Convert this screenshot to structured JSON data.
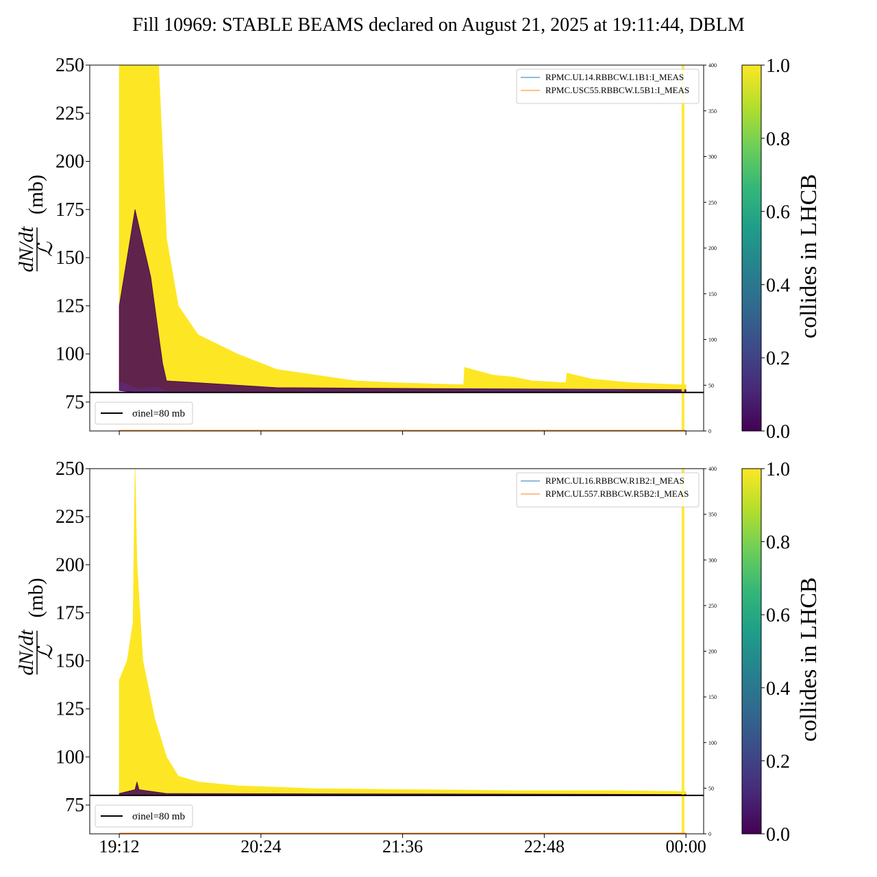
{
  "figure": {
    "title": "Fill 10969: STABLE BEAMS declared on August 21, 2025 at 19:11:44, DBLM"
  },
  "colors": {
    "yellow": "#fde725",
    "purple": "#440154",
    "sigma_line": "#000000",
    "blue_line": "#1f77b4",
    "orange_line": "#ff7f0e"
  },
  "chart_data": [
    {
      "type": "line",
      "panel": "top",
      "ylabel": "dN/dt / ℒ (mb)",
      "ylim": [
        60,
        250
      ],
      "yticks": [
        75,
        100,
        125,
        150,
        175,
        200,
        225,
        250
      ],
      "secondary_ylim": [
        0,
        400
      ],
      "secondary_yticks": [
        0,
        50,
        100,
        150,
        200,
        250,
        300,
        350,
        400
      ],
      "xticks": [
        "19:12",
        "20:24",
        "21:36",
        "22:48",
        "00:00"
      ],
      "xlim_minutes": [
        -15,
        297
      ],
      "legend_entries": [
        "RPMC.UL14.RBBCW.L1B1:I_MEAS",
        "RPMC.USC55.RBBCW.L5B1:I_MEAS"
      ],
      "sigma_legend": "σinel=80 mb",
      "sigma_value": 80,
      "colorbar": {
        "label": "collides in LHCB",
        "ticks": [
          "0.0",
          "0.2",
          "0.4",
          "0.6",
          "0.8",
          "1.0"
        ],
        "range": [
          0,
          1
        ]
      },
      "series": [
        {
          "name": "collides in LHCB = 1",
          "color": "yellow",
          "x_minutes": [
            0,
            10,
            20,
            24,
            30,
            40,
            60,
            80,
            100,
            120,
            140,
            175,
            175.5,
            190,
            200,
            210,
            227,
            227.5,
            240,
            250,
            260,
            285,
            288
          ],
          "upper": [
            250,
            250,
            250,
            160,
            125,
            110,
            100,
            92,
            89,
            86,
            85,
            84,
            93,
            89,
            88,
            86,
            85,
            90,
            87,
            86,
            85,
            84,
            84
          ],
          "lower": [
            86,
            82,
            83,
            81,
            81,
            81,
            81,
            81,
            81,
            81,
            81,
            81,
            82,
            82,
            82,
            82,
            81,
            82,
            82,
            82,
            81,
            81,
            81
          ]
        },
        {
          "name": "collides in LHCB = 0",
          "color": "purple",
          "x_minutes": [
            0,
            8,
            16,
            20,
            22,
            24,
            40,
            80,
            160,
            288
          ],
          "upper": [
            125,
            175,
            140,
            110,
            95,
            86,
            85,
            82.5,
            82,
            81.5
          ],
          "lower": [
            81,
            80,
            80,
            80,
            80,
            80,
            80,
            80,
            80,
            80
          ]
        }
      ],
      "end_spike": {
        "x_minute": 286.5,
        "label": "spike"
      }
    },
    {
      "type": "line",
      "panel": "bottom",
      "ylabel": "dN/dt / ℒ (mb)",
      "ylim": [
        60,
        250
      ],
      "yticks": [
        75,
        100,
        125,
        150,
        175,
        200,
        225,
        250
      ],
      "secondary_ylim": [
        0,
        400
      ],
      "secondary_yticks": [
        0,
        50,
        100,
        150,
        200,
        250,
        300,
        350,
        400
      ],
      "xticks": [
        "19:12",
        "20:24",
        "21:36",
        "22:48",
        "00:00"
      ],
      "xlim_minutes": [
        -15,
        297
      ],
      "legend_entries": [
        "RPMC.UL16.RBBCW.R1B2:I_MEAS",
        "RPMC.UL557.RBBCW.R5B2:I_MEAS"
      ],
      "sigma_legend": "σinel=80 mb",
      "sigma_value": 80,
      "colorbar": {
        "label": "collides in LHCB",
        "ticks": [
          "0.0",
          "0.2",
          "0.4",
          "0.6",
          "0.8",
          "1.0"
        ],
        "range": [
          0,
          1
        ]
      },
      "series": [
        {
          "name": "collides in LHCB = 1",
          "color": "yellow",
          "x_minutes": [
            0,
            4,
            7,
            8,
            9,
            12,
            18,
            24,
            30,
            40,
            60,
            100,
            150,
            200,
            250,
            288
          ],
          "upper": [
            140,
            150,
            170,
            250,
            200,
            150,
            120,
            100,
            90,
            87,
            85,
            83.5,
            83,
            82.5,
            82.5,
            82
          ],
          "lower": [
            80,
            80,
            80,
            80,
            80,
            80,
            80,
            80,
            80,
            80,
            80,
            80,
            80,
            80,
            80,
            80
          ]
        },
        {
          "name": "collides in LHCB = 0",
          "color": "purple",
          "x_minutes": [
            0,
            8,
            9,
            10,
            24,
            288
          ],
          "upper": [
            81,
            83,
            87,
            83,
            81,
            80.5
          ],
          "lower": [
            80,
            80,
            80,
            80,
            80,
            80
          ]
        }
      ],
      "end_spike": {
        "x_minute": 286.5,
        "label": "spike"
      }
    }
  ]
}
